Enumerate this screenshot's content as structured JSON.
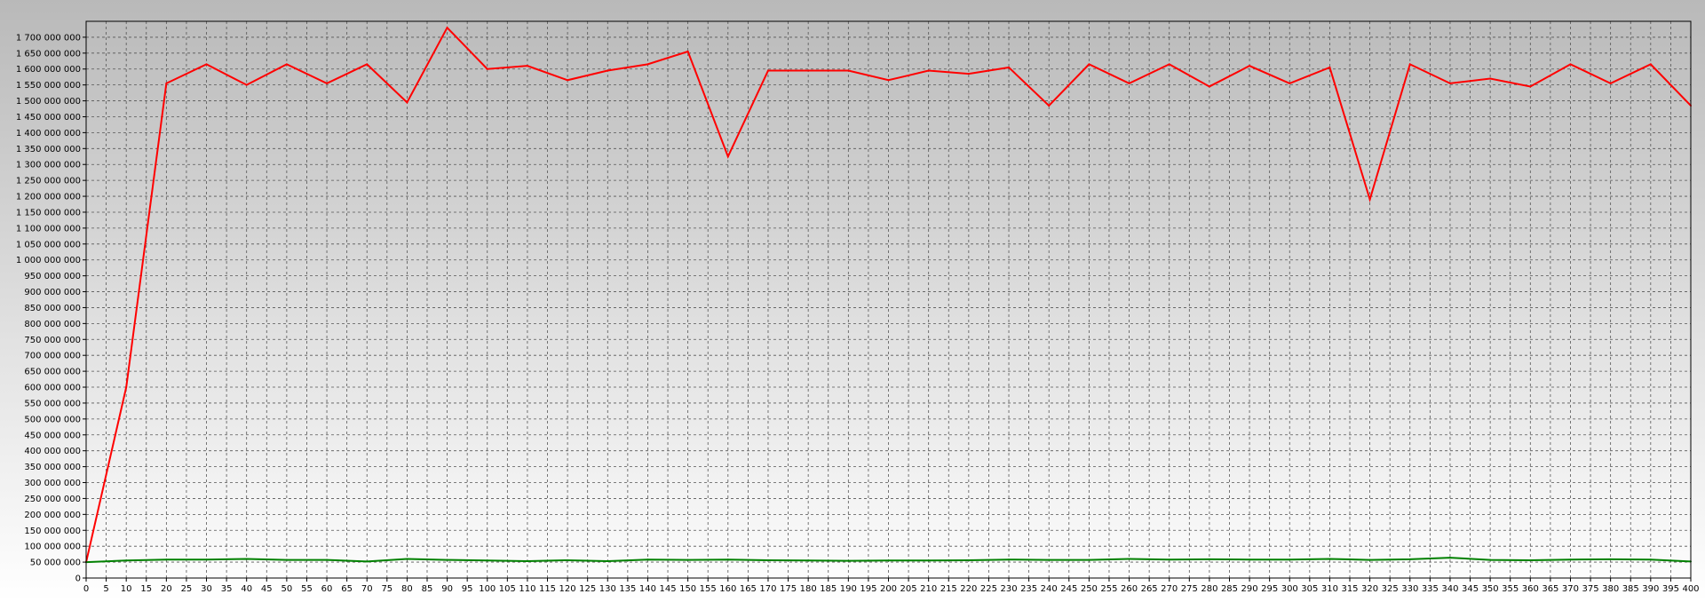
{
  "chart_data": {
    "type": "line",
    "title": "",
    "xlabel": "",
    "ylabel": "",
    "xlim": [
      0,
      400
    ],
    "ylim": [
      0,
      1750000000
    ],
    "grid": true,
    "legend": "none",
    "x_ticks": [
      "0",
      "5",
      "10",
      "15",
      "20",
      "25",
      "30",
      "35",
      "40",
      "45",
      "50",
      "55",
      "60",
      "65",
      "70",
      "75",
      "80",
      "85",
      "90",
      "95",
      "100",
      "105",
      "110",
      "115",
      "120",
      "125",
      "130",
      "135",
      "140",
      "145",
      "150",
      "155",
      "160",
      "165",
      "170",
      "175",
      "180",
      "185",
      "190",
      "195",
      "200",
      "205",
      "210",
      "215",
      "220",
      "225",
      "230",
      "235",
      "240",
      "245",
      "250",
      "255",
      "260",
      "265",
      "270",
      "275",
      "280",
      "285",
      "290",
      "295",
      "300",
      "305",
      "310",
      "315",
      "320",
      "325",
      "330",
      "335",
      "340",
      "345",
      "350",
      "355",
      "360",
      "365",
      "370",
      "375",
      "380",
      "385",
      "390",
      "395",
      "400"
    ],
    "y_ticks": [
      "0",
      "50 000 000",
      "100 000 000",
      "150 000 000",
      "200 000 000",
      "250 000 000",
      "300 000 000",
      "350 000 000",
      "400 000 000",
      "450 000 000",
      "500 000 000",
      "550 000 000",
      "600 000 000",
      "650 000 000",
      "700 000 000",
      "750 000 000",
      "800 000 000",
      "850 000 000",
      "900 000 000",
      "950 000 000",
      "1 000 000 000",
      "1 050 000 000",
      "1 100 000 000",
      "1 150 000 000",
      "1 200 000 000",
      "1 250 000 000",
      "1 300 000 000",
      "1 350 000 000",
      "1 400 000 000",
      "1 450 000 000",
      "1 500 000 000",
      "1 550 000 000",
      "1 600 000 000",
      "1 650 000 000",
      "1 700 000 000"
    ],
    "x": [
      0,
      10,
      20,
      30,
      40,
      50,
      60,
      70,
      80,
      90,
      100,
      110,
      120,
      130,
      140,
      150,
      160,
      170,
      180,
      190,
      200,
      210,
      220,
      230,
      240,
      250,
      260,
      270,
      280,
      290,
      300,
      310,
      320,
      330,
      340,
      350,
      360,
      370,
      380,
      390,
      400
    ],
    "series": [
      {
        "color": "#ff0000",
        "values": [
          50000000,
          600000000,
          1555000000,
          1615000000,
          1550000000,
          1615000000,
          1555000000,
          1615000000,
          1495000000,
          1730000000,
          1600000000,
          1610000000,
          1565000000,
          1595000000,
          1615000000,
          1655000000,
          1325000000,
          1595000000,
          1595000000,
          1595000000,
          1565000000,
          1595000000,
          1585000000,
          1605000000,
          1485000000,
          1615000000,
          1555000000,
          1615000000,
          1545000000,
          1610000000,
          1555000000,
          1605000000,
          1190000000,
          1615000000,
          1555000000,
          1570000000,
          1545000000,
          1615000000,
          1555000000,
          1615000000,
          1485000000
        ]
      },
      {
        "color": "#008000",
        "values": [
          50000000,
          55000000,
          58000000,
          58000000,
          60000000,
          57000000,
          57000000,
          52000000,
          60000000,
          57000000,
          55000000,
          53000000,
          56000000,
          53000000,
          58000000,
          57000000,
          58000000,
          56000000,
          55000000,
          54000000,
          55000000,
          55000000,
          56000000,
          58000000,
          57000000,
          57000000,
          60000000,
          58000000,
          59000000,
          58000000,
          58000000,
          60000000,
          57000000,
          59000000,
          64000000,
          57000000,
          56000000,
          58000000,
          59000000,
          58000000,
          52000000
        ]
      }
    ]
  }
}
